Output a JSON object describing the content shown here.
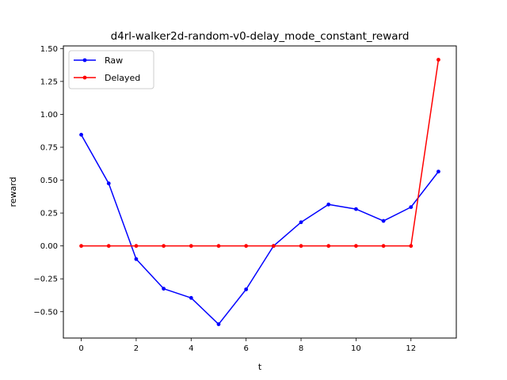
{
  "chart_data": {
    "type": "line",
    "title": "d4rl-walker2d-random-v0-delay_mode_constant_reward",
    "xlabel": "t",
    "ylabel": "reward",
    "x": [
      0,
      1,
      2,
      3,
      4,
      5,
      6,
      7,
      8,
      9,
      10,
      11,
      12,
      13
    ],
    "xlim": [
      -0.65,
      13.65
    ],
    "ylim": [
      -0.7,
      1.52
    ],
    "xticks": [
      0,
      2,
      4,
      6,
      8,
      10,
      12
    ],
    "yticks": [
      -0.5,
      -0.25,
      0.0,
      0.25,
      0.5,
      0.75,
      1.0,
      1.25,
      1.5
    ],
    "xtick_labels": [
      "0",
      "2",
      "4",
      "6",
      "8",
      "10",
      "12"
    ],
    "ytick_labels": [
      "−0.50",
      "−0.25",
      "0.00",
      "0.25",
      "0.50",
      "0.75",
      "1.00",
      "1.25",
      "1.50"
    ],
    "grid": false,
    "legend_position": "upper-left",
    "series": [
      {
        "name": "Raw",
        "color": "#0000ff",
        "marker": "dot",
        "values": [
          0.845,
          0.475,
          -0.1,
          -0.325,
          -0.395,
          -0.595,
          -0.33,
          0.0,
          0.18,
          0.315,
          0.28,
          0.19,
          0.295,
          0.565
        ]
      },
      {
        "name": "Delayed",
        "color": "#ff0000",
        "marker": "dot",
        "values": [
          0.0,
          0.0,
          0.0,
          0.0,
          0.0,
          0.0,
          0.0,
          0.0,
          0.0,
          0.0,
          0.0,
          0.0,
          0.0,
          1.415
        ]
      }
    ]
  }
}
